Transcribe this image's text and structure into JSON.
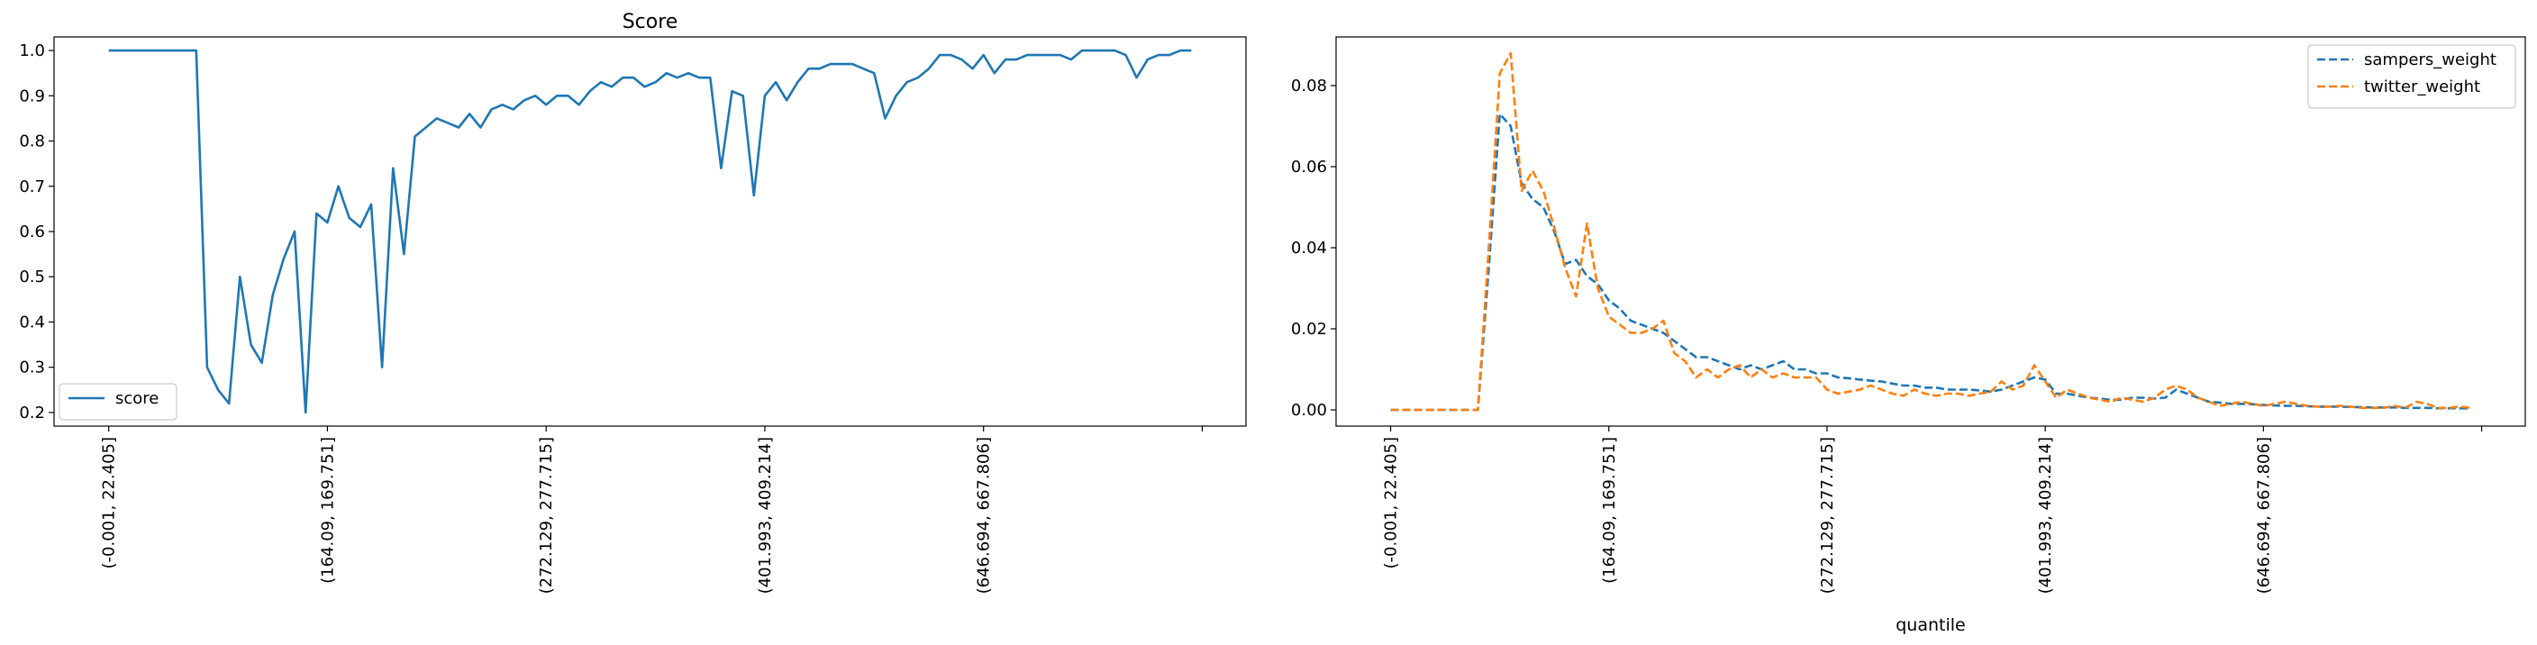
{
  "chart_data": [
    {
      "type": "line",
      "title": "Score",
      "xlabel": "",
      "ylabel": "",
      "x_tick_labels": [
        "(-0.001, 22.405]",
        "(164.09, 169.751]",
        "(272.129, 277.715]",
        "(401.993, 409.214]",
        "(646.694, 667.806]",
        ""
      ],
      "x_tick_positions": [
        0,
        20,
        40,
        60,
        80,
        100
      ],
      "xlim": [
        -5,
        104
      ],
      "ylim": [
        0.17,
        1.03
      ],
      "y_ticks": [
        0.2,
        0.3,
        0.4,
        0.5,
        0.6,
        0.7,
        0.8,
        0.9,
        1.0
      ],
      "y_tick_labels": [
        "0.2",
        "0.3",
        "0.4",
        "0.5",
        "0.6",
        "0.7",
        "0.8",
        "0.9",
        "1.0"
      ],
      "legend": {
        "position": "lower-left",
        "entries": [
          "score"
        ]
      },
      "colors": {
        "score": "#1f77b4"
      },
      "series": [
        {
          "name": "score",
          "values": [
            1.0,
            1.0,
            1.0,
            1.0,
            1.0,
            1.0,
            1.0,
            1.0,
            1.0,
            0.3,
            0.25,
            0.22,
            0.5,
            0.35,
            0.31,
            0.46,
            0.54,
            0.6,
            0.2,
            0.64,
            0.62,
            0.7,
            0.63,
            0.61,
            0.66,
            0.3,
            0.74,
            0.55,
            0.81,
            0.83,
            0.85,
            0.84,
            0.83,
            0.86,
            0.83,
            0.87,
            0.88,
            0.87,
            0.89,
            0.9,
            0.88,
            0.9,
            0.9,
            0.88,
            0.91,
            0.93,
            0.92,
            0.94,
            0.94,
            0.92,
            0.93,
            0.95,
            0.94,
            0.95,
            0.94,
            0.94,
            0.74,
            0.91,
            0.9,
            0.68,
            0.9,
            0.93,
            0.89,
            0.93,
            0.96,
            0.96,
            0.97,
            0.97,
            0.97,
            0.96,
            0.95,
            0.85,
            0.9,
            0.93,
            0.94,
            0.96,
            0.99,
            0.99,
            0.98,
            0.96,
            0.99,
            0.95,
            0.98,
            0.98,
            0.99,
            0.99,
            0.99,
            0.99,
            0.98,
            1.0,
            1.0,
            1.0,
            1.0,
            0.99,
            0.94,
            0.98,
            0.99,
            0.99,
            1.0,
            1.0
          ]
        }
      ]
    },
    {
      "type": "line",
      "title": "",
      "xlabel": "quantile",
      "ylabel": "",
      "x_tick_labels": [
        "(-0.001, 22.405]",
        "(164.09, 169.751]",
        "(272.129, 277.715]",
        "(401.993, 409.214]",
        "(646.694, 667.806]",
        ""
      ],
      "x_tick_positions": [
        0,
        20,
        40,
        60,
        80,
        100
      ],
      "xlim": [
        -5,
        104
      ],
      "ylim": [
        -0.004,
        0.092
      ],
      "y_ticks": [
        0.0,
        0.02,
        0.04,
        0.06,
        0.08
      ],
      "y_tick_labels": [
        "0.00",
        "0.02",
        "0.04",
        "0.06",
        "0.08"
      ],
      "legend": {
        "position": "top-right",
        "entries": [
          "sampers_weight",
          "twitter_weight"
        ]
      },
      "colors": {
        "sampers_weight": "#1f77b4",
        "twitter_weight": "#ff7f0e"
      },
      "series": [
        {
          "name": "sampers_weight",
          "dashed": true,
          "values": [
            0,
            0,
            0,
            0,
            0,
            0,
            0,
            0,
            0,
            0.035,
            0.073,
            0.07,
            0.056,
            0.052,
            0.05,
            0.044,
            0.036,
            0.037,
            0.033,
            0.031,
            0.027,
            0.025,
            0.022,
            0.021,
            0.02,
            0.019,
            0.017,
            0.015,
            0.013,
            0.013,
            0.012,
            0.011,
            0.01,
            0.011,
            0.01,
            0.011,
            0.012,
            0.01,
            0.01,
            0.009,
            0.009,
            0.008,
            0.0078,
            0.0075,
            0.0072,
            0.007,
            0.0065,
            0.006,
            0.006,
            0.0055,
            0.0055,
            0.005,
            0.005,
            0.005,
            0.0048,
            0.0045,
            0.005,
            0.006,
            0.007,
            0.008,
            0.0075,
            0.004,
            0.004,
            0.0035,
            0.003,
            0.0028,
            0.0025,
            0.0025,
            0.003,
            0.003,
            0.0028,
            0.003,
            0.005,
            0.004,
            0.003,
            0.002,
            0.0018,
            0.0015,
            0.0015,
            0.0014,
            0.0012,
            0.0011,
            0.001,
            0.001,
            0.0009,
            0.0008,
            0.0008,
            0.0008,
            0.0007,
            0.0007,
            0.0006,
            0.0006,
            0.0006,
            0.0005,
            0.0005,
            0.0005,
            0.0004,
            0.0004,
            0.0004,
            0.0003
          ]
        },
        {
          "name": "twitter_weight",
          "dashed": true,
          "values": [
            0,
            0,
            0,
            0,
            0,
            0,
            0,
            0,
            0,
            0.04,
            0.083,
            0.088,
            0.054,
            0.059,
            0.054,
            0.045,
            0.035,
            0.028,
            0.046,
            0.03,
            0.023,
            0.021,
            0.019,
            0.019,
            0.02,
            0.022,
            0.014,
            0.012,
            0.008,
            0.01,
            0.008,
            0.01,
            0.011,
            0.008,
            0.01,
            0.008,
            0.009,
            0.008,
            0.008,
            0.008,
            0.005,
            0.004,
            0.0045,
            0.005,
            0.006,
            0.005,
            0.004,
            0.0035,
            0.005,
            0.004,
            0.0035,
            0.004,
            0.004,
            0.0035,
            0.004,
            0.0045,
            0.007,
            0.005,
            0.006,
            0.011,
            0.007,
            0.003,
            0.005,
            0.004,
            0.003,
            0.0025,
            0.002,
            0.003,
            0.0025,
            0.002,
            0.003,
            0.005,
            0.006,
            0.005,
            0.003,
            0.002,
            0.001,
            0.0015,
            0.002,
            0.0015,
            0.001,
            0.0015,
            0.002,
            0.0015,
            0.001,
            0.0008,
            0.0008,
            0.001,
            0.0008,
            0.0005,
            0.0005,
            0.0005,
            0.001,
            0.0005,
            0.002,
            0.0015,
            0.0005,
            0.0005,
            0.0008,
            0.0005
          ]
        }
      ]
    }
  ]
}
